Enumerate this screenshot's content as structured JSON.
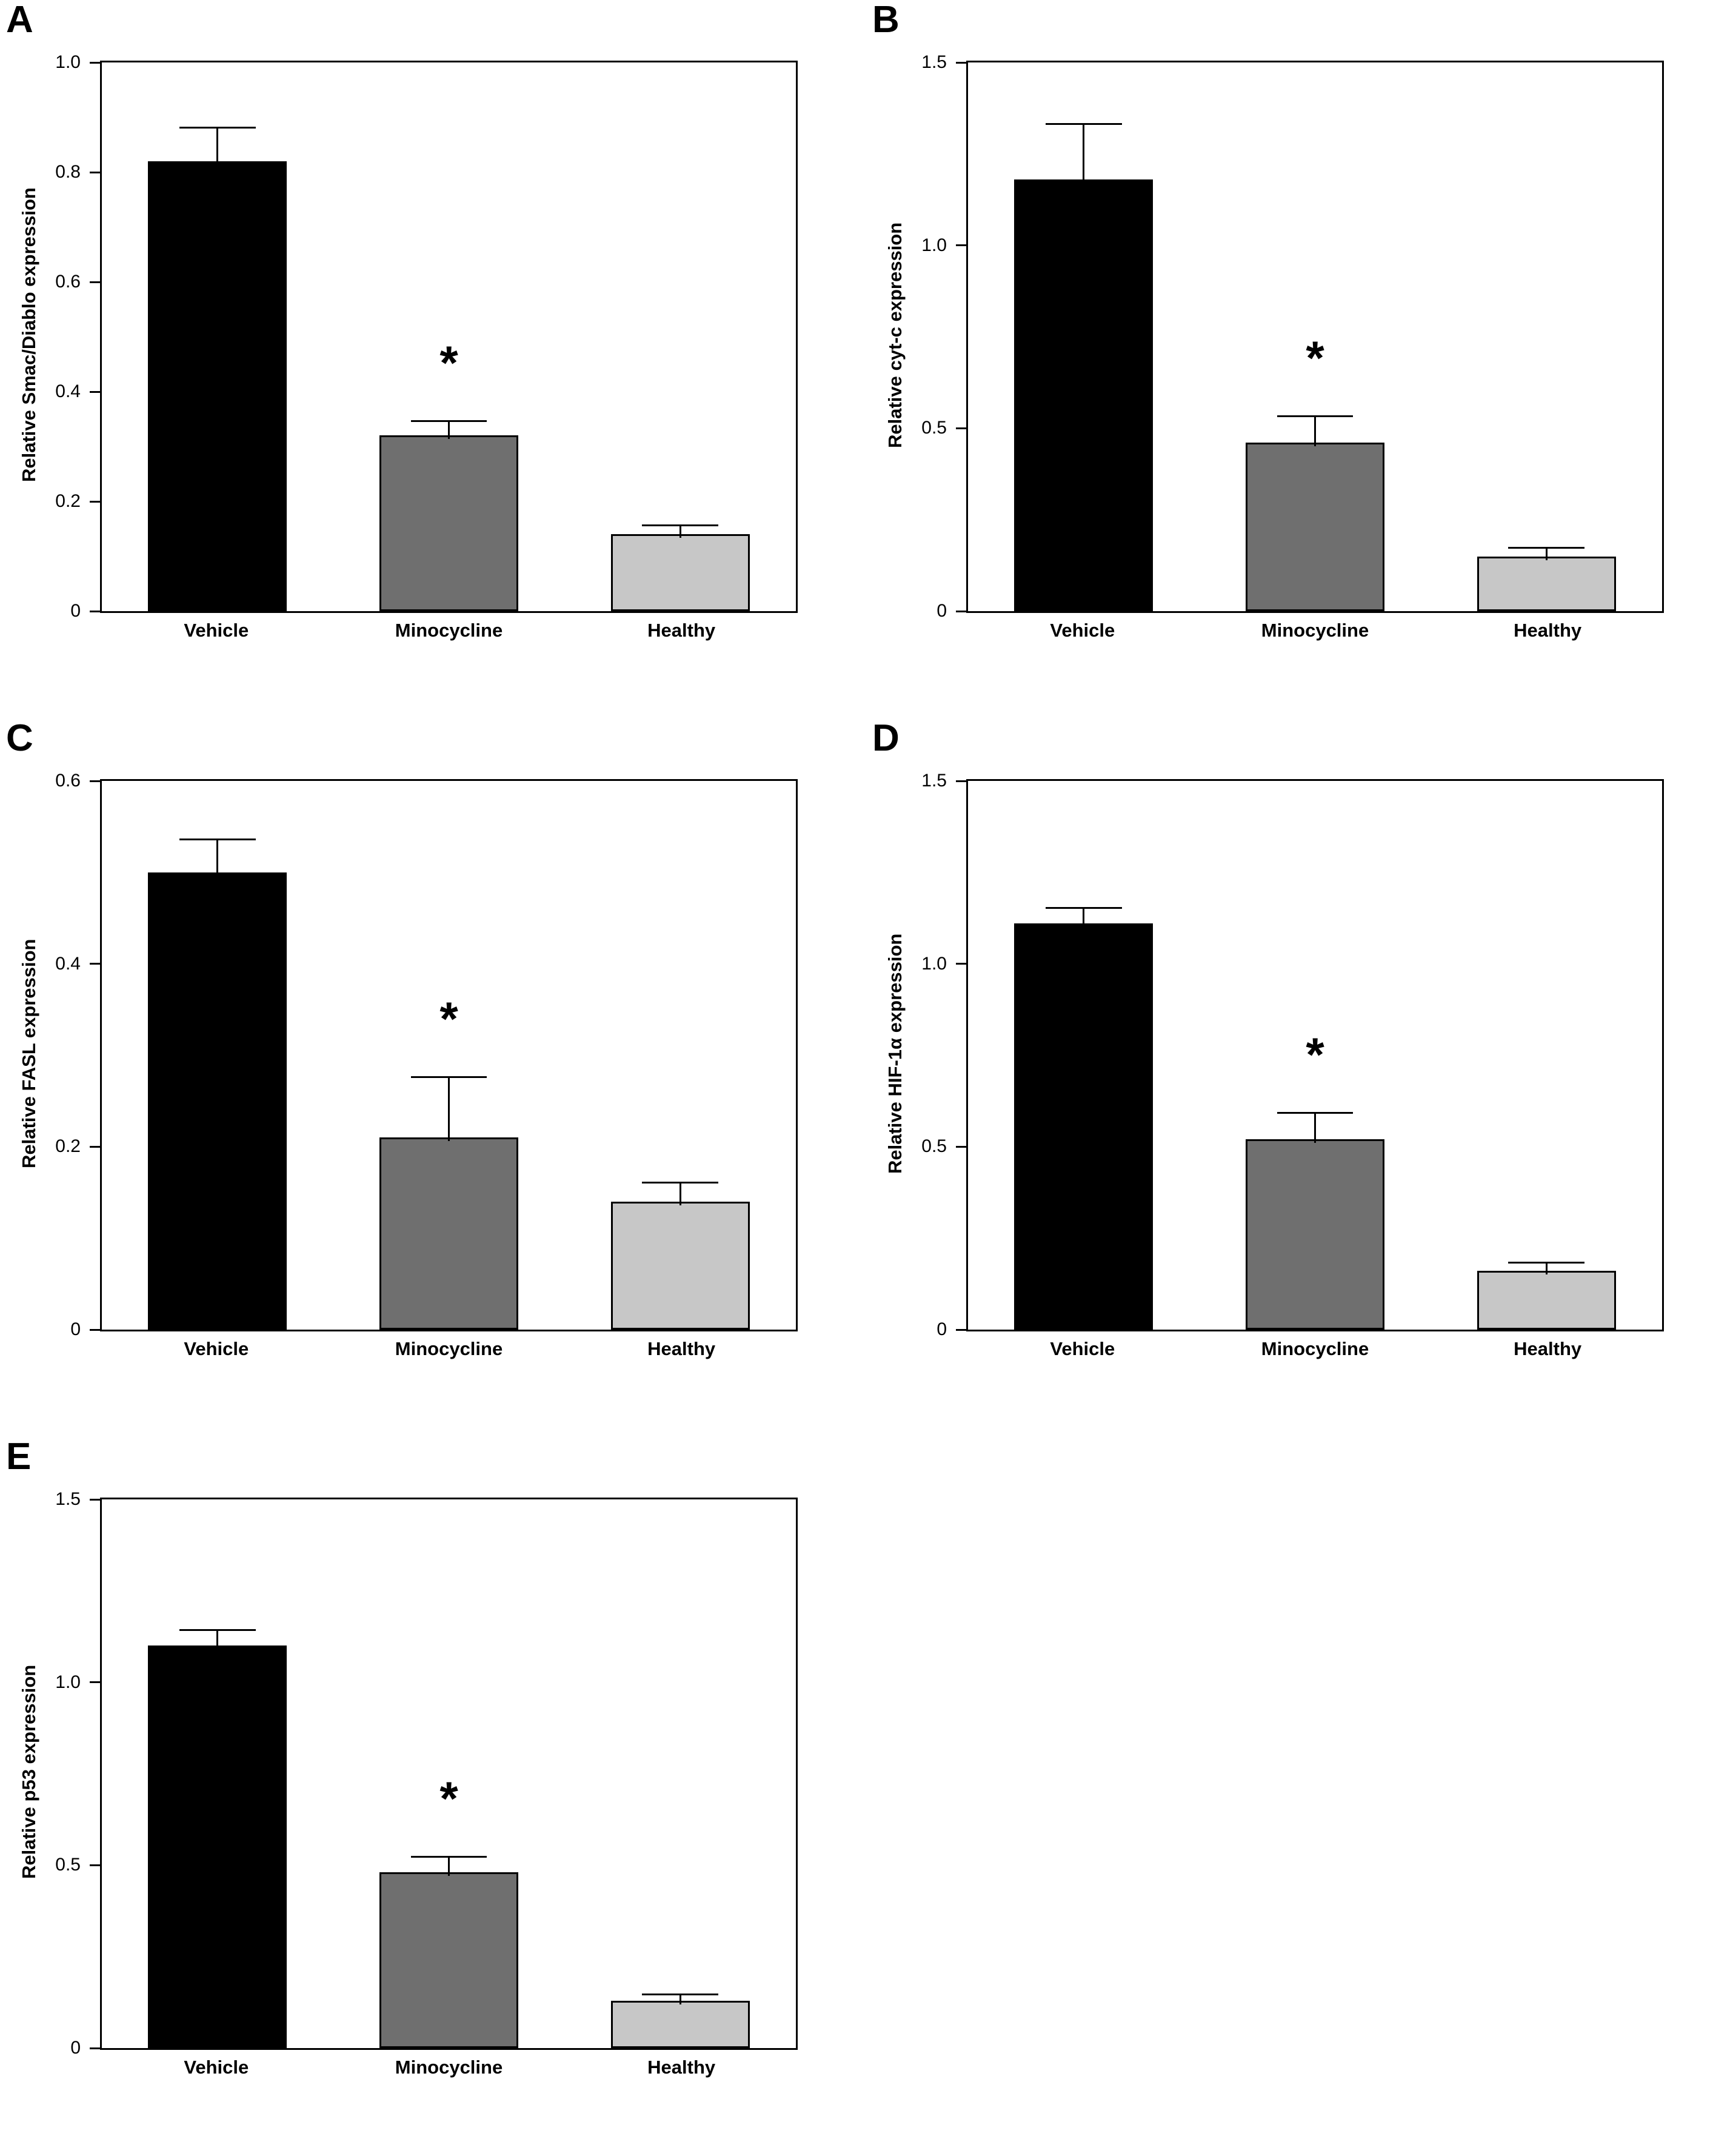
{
  "figure": {
    "background": "#ffffff",
    "bar_colors": {
      "Vehicle": "#000000",
      "Minocycline": "#6f6f6f",
      "Healthy": "#c7c7c7"
    },
    "axis_color": "#000000",
    "significance_symbol": "*"
  },
  "chart_data": [
    {
      "type": "bar",
      "panel": "A",
      "ylabel": "Relative Smac/Diablo expression",
      "xlabel": "",
      "categories": [
        "Vehicle",
        "Minocycline",
        "Healthy"
      ],
      "values": [
        0.82,
        0.32,
        0.14
      ],
      "errors": [
        0.06,
        0.025,
        0.015
      ],
      "ylim": [
        0,
        1.0
      ],
      "yticks": [
        0,
        0.2,
        0.4,
        0.6,
        0.8,
        1.0
      ],
      "ytick_labels": [
        "0",
        "0.2",
        "0.4",
        "0.6",
        "0.8",
        "1.0"
      ],
      "grid": false,
      "legend": "none",
      "significance": {
        "category": "Minocycline",
        "label": "*"
      }
    },
    {
      "type": "bar",
      "panel": "B",
      "ylabel": "Relative cyt-c expression",
      "xlabel": "",
      "categories": [
        "Vehicle",
        "Minocycline",
        "Healthy"
      ],
      "values": [
        1.18,
        0.46,
        0.15
      ],
      "errors": [
        0.15,
        0.07,
        0.02
      ],
      "ylim": [
        0,
        1.5
      ],
      "yticks": [
        0,
        0.5,
        1.0,
        1.5
      ],
      "ytick_labels": [
        "0",
        "0.5",
        "1.0",
        "1.5"
      ],
      "grid": false,
      "legend": "none",
      "significance": {
        "category": "Minocycline",
        "label": "*"
      }
    },
    {
      "type": "bar",
      "panel": "C",
      "ylabel": "Relative FASL expression",
      "xlabel": "",
      "categories": [
        "Vehicle",
        "Minocycline",
        "Healthy"
      ],
      "values": [
        0.5,
        0.21,
        0.14
      ],
      "errors": [
        0.035,
        0.065,
        0.02
      ],
      "ylim": [
        0,
        0.6
      ],
      "yticks": [
        0,
        0.2,
        0.4,
        0.6
      ],
      "ytick_labels": [
        "0",
        "0.2",
        "0.4",
        "0.6"
      ],
      "grid": false,
      "legend": "none",
      "significance": {
        "category": "Minocycline",
        "label": "*"
      }
    },
    {
      "type": "bar",
      "panel": "D",
      "ylabel": "Relative HIF-1α expression",
      "xlabel": "",
      "categories": [
        "Vehicle",
        "Minocycline",
        "Healthy"
      ],
      "values": [
        1.11,
        0.52,
        0.16
      ],
      "errors": [
        0.04,
        0.07,
        0.02
      ],
      "ylim": [
        0,
        1.5
      ],
      "yticks": [
        0,
        0.5,
        1.0,
        1.5
      ],
      "ytick_labels": [
        "0",
        "0.5",
        "1.0",
        "1.5"
      ],
      "grid": false,
      "legend": "none",
      "significance": {
        "category": "Minocycline",
        "label": "*"
      }
    },
    {
      "type": "bar",
      "panel": "E",
      "ylabel": "Relative p53 expression",
      "xlabel": "",
      "categories": [
        "Vehicle",
        "Minocycline",
        "Healthy"
      ],
      "values": [
        1.1,
        0.48,
        0.13
      ],
      "errors": [
        0.04,
        0.04,
        0.015
      ],
      "ylim": [
        0,
        1.5
      ],
      "yticks": [
        0,
        0.5,
        1.0,
        1.5
      ],
      "ytick_labels": [
        "0",
        "0.5",
        "1.0",
        "1.5"
      ],
      "grid": false,
      "legend": "none",
      "significance": {
        "category": "Minocycline",
        "label": "*"
      }
    }
  ]
}
